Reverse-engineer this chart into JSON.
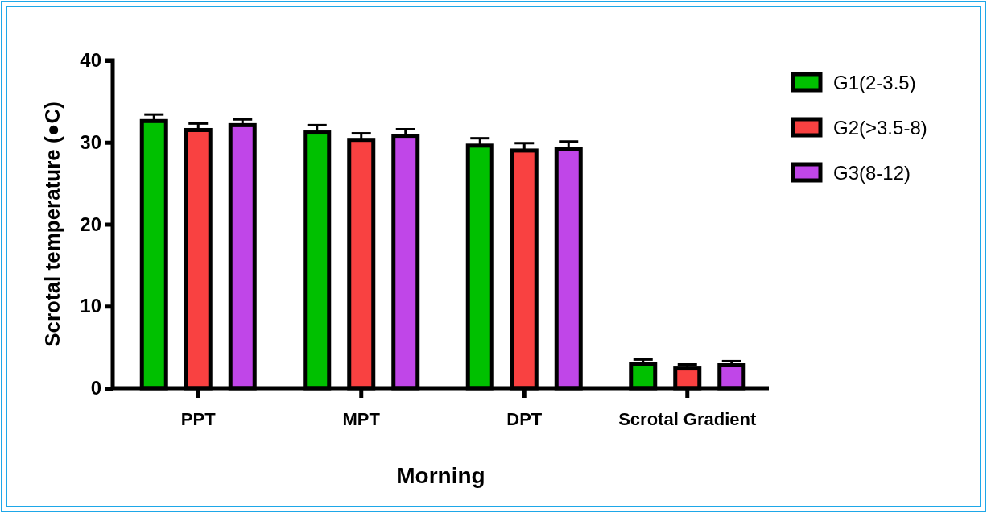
{
  "chart_data": {
    "type": "bar",
    "xlabel": "Morning",
    "ylabel": "Scrotal temperature (●C)",
    "categories": [
      "PPT",
      "MPT",
      "DPT",
      "Scrotal Gradient"
    ],
    "series": [
      {
        "name": "G1(2-3.5)",
        "color": "#00c000",
        "values": [
          32.6,
          31.2,
          29.6,
          2.9
        ],
        "errors": [
          [
            32.6,
            33.4
          ],
          [
            31.2,
            32.1
          ],
          [
            29.6,
            30.5
          ],
          [
            2.9,
            3.5
          ]
        ]
      },
      {
        "name": "G2(>3.5-8)",
        "color": "#f94141",
        "values": [
          31.5,
          30.3,
          29.0,
          2.4
        ],
        "errors": [
          [
            31.5,
            32.3
          ],
          [
            30.3,
            31.1
          ],
          [
            29.0,
            29.9
          ],
          [
            2.4,
            2.9
          ]
        ]
      },
      {
        "name": "G3(8-12)",
        "color": "#c046e8",
        "values": [
          32.1,
          30.8,
          29.2,
          2.8
        ],
        "errors": [
          [
            32.1,
            32.8
          ],
          [
            30.8,
            31.6
          ],
          [
            29.2,
            30.1
          ],
          [
            2.8,
            3.3
          ]
        ]
      }
    ],
    "ylim": [
      0,
      40
    ],
    "yticks": [
      0,
      10,
      20,
      30,
      40
    ],
    "grid": false,
    "legend": "top right"
  }
}
